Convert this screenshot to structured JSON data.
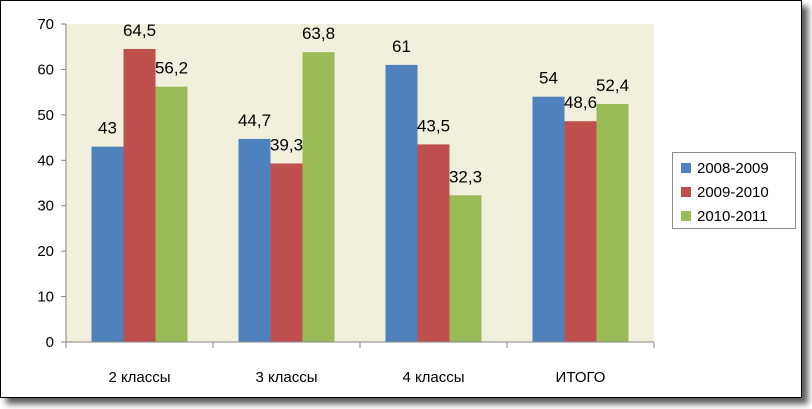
{
  "chart_data": {
    "type": "bar",
    "categories": [
      "2 классы",
      "3 классы",
      "4 классы",
      "ИТОГО"
    ],
    "series": [
      {
        "name": "2008-2009",
        "values": [
          43,
          44.7,
          61,
          54
        ],
        "labels": [
          "43",
          "44,7",
          "61",
          "54"
        ],
        "color": "#4f81bd"
      },
      {
        "name": "2009-2010",
        "values": [
          64.5,
          39.3,
          43.5,
          48.6
        ],
        "labels": [
          "64,5",
          "39,3",
          "43,5",
          "48,6"
        ],
        "color": "#c0504d"
      },
      {
        "name": "2010-2011",
        "values": [
          56.2,
          63.8,
          32.3,
          52.4
        ],
        "labels": [
          "56,2",
          "63,8",
          "32,3",
          "52,4"
        ],
        "color": "#9bbb59"
      }
    ],
    "ylim": [
      0,
      70
    ],
    "yticks": [
      "0",
      "10",
      "20",
      "30",
      "40",
      "50",
      "60",
      "70"
    ],
    "grid": false,
    "legend_position": "right",
    "plot_background": "#f0f0dc"
  }
}
